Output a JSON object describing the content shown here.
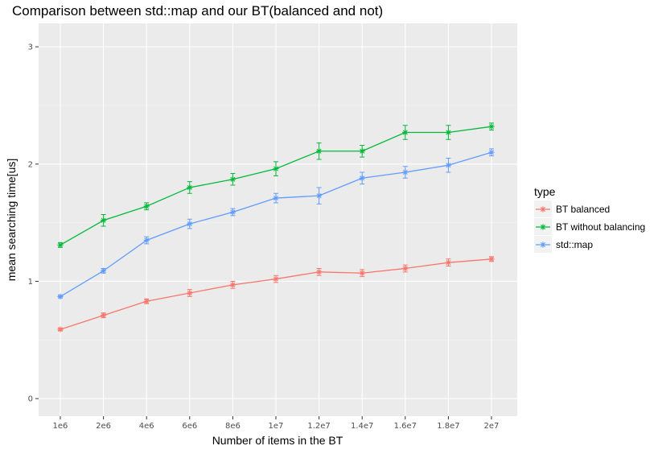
{
  "title": "Comparison between std::map and our BT(balanced and not)",
  "chart_data": {
    "type": "line",
    "title": "Comparison between std::map and our BT(balanced and not)",
    "xlabel": "Number of items in the BT",
    "ylabel": "mean searching time[us]",
    "categories": [
      "1e6",
      "2e6",
      "4e6",
      "6e6",
      "8e6",
      "1e7",
      "1.2e7",
      "1.4e7",
      "1.6e7",
      "1.8e7",
      "2e7"
    ],
    "yticks": [
      "0",
      "1",
      "2",
      "3"
    ],
    "ylim": [
      -0.15,
      3.2
    ],
    "grid": true,
    "legend_title": "type",
    "legend_position": "right",
    "series": [
      {
        "name": "BT balanced",
        "color": "#F8766D",
        "values": [
          0.59,
          0.71,
          0.83,
          0.9,
          0.97,
          1.02,
          1.08,
          1.07,
          1.11,
          1.16,
          1.19
        ],
        "errors": [
          0.01,
          0.02,
          0.02,
          0.03,
          0.03,
          0.03,
          0.03,
          0.03,
          0.03,
          0.03,
          0.02
        ]
      },
      {
        "name": "BT without balancing",
        "color": "#00BA38",
        "values": [
          1.31,
          1.52,
          1.64,
          1.8,
          1.87,
          1.96,
          2.11,
          2.11,
          2.27,
          2.27,
          2.32
        ],
        "errors": [
          0.02,
          0.05,
          0.03,
          0.05,
          0.05,
          0.06,
          0.07,
          0.05,
          0.06,
          0.06,
          0.03
        ]
      },
      {
        "name": "std::map",
        "color": "#619CFF",
        "values": [
          0.87,
          1.09,
          1.35,
          1.49,
          1.59,
          1.71,
          1.73,
          1.88,
          1.93,
          1.99,
          2.1
        ],
        "errors": [
          0.01,
          0.02,
          0.03,
          0.04,
          0.03,
          0.04,
          0.07,
          0.05,
          0.05,
          0.06,
          0.03
        ]
      }
    ]
  }
}
